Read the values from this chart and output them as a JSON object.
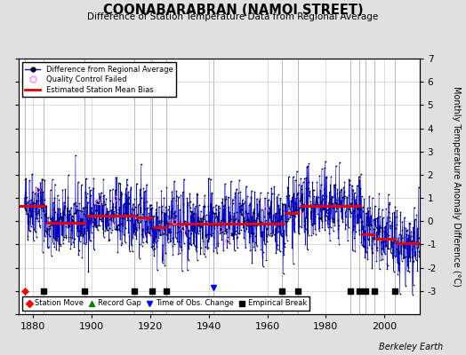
{
  "title": "COONABARABRAN (NAMOI STREET)",
  "subtitle": "Difference of Station Temperature Data from Regional Average",
  "ylabel": "Monthly Temperature Anomaly Difference (°C)",
  "xlim": [
    1875,
    2012
  ],
  "ylim": [
    -4,
    7
  ],
  "yticks_right": [
    -3,
    -2,
    -1,
    0,
    1,
    2,
    3,
    4,
    5,
    6,
    7
  ],
  "xticks": [
    1880,
    1900,
    1920,
    1940,
    1960,
    1980,
    2000
  ],
  "background_color": "#e0e0e0",
  "plot_bg_color": "#ffffff",
  "line_color": "#0000dd",
  "bias_color": "#dd0000",
  "qc_color": "#ff88ff",
  "grid_color": "#cccccc",
  "watermark": "Berkeley Earth",
  "seed": 42,
  "noise_std": 0.75,
  "station_moves": [
    1877.2
  ],
  "record_gaps": [],
  "obs_changes": [
    1941.5
  ],
  "empirical_breaks": [
    1883.5,
    1897.5,
    1914.5,
    1920.5,
    1925.5,
    1965.0,
    1970.5,
    1988.5,
    1991.5,
    1993.5,
    1996.5,
    2003.5
  ],
  "event_marker_y": -3.0,
  "bias_segments": [
    {
      "start": 1875,
      "end": 1884,
      "bias": 0.65
    },
    {
      "start": 1884,
      "end": 1898,
      "bias": -0.05
    },
    {
      "start": 1898,
      "end": 1915,
      "bias": 0.25
    },
    {
      "start": 1915,
      "end": 1921,
      "bias": 0.15
    },
    {
      "start": 1921,
      "end": 1926,
      "bias": -0.25
    },
    {
      "start": 1926,
      "end": 1966,
      "bias": -0.12
    },
    {
      "start": 1966,
      "end": 1971,
      "bias": 0.35
    },
    {
      "start": 1971,
      "end": 1989,
      "bias": 0.65
    },
    {
      "start": 1989,
      "end": 1992,
      "bias": 0.65
    },
    {
      "start": 1992,
      "end": 1994,
      "bias": -0.55
    },
    {
      "start": 1994,
      "end": 1997,
      "bias": -0.55
    },
    {
      "start": 1997,
      "end": 2004,
      "bias": -0.75
    },
    {
      "start": 2004,
      "end": 2012,
      "bias": -0.95
    }
  ]
}
